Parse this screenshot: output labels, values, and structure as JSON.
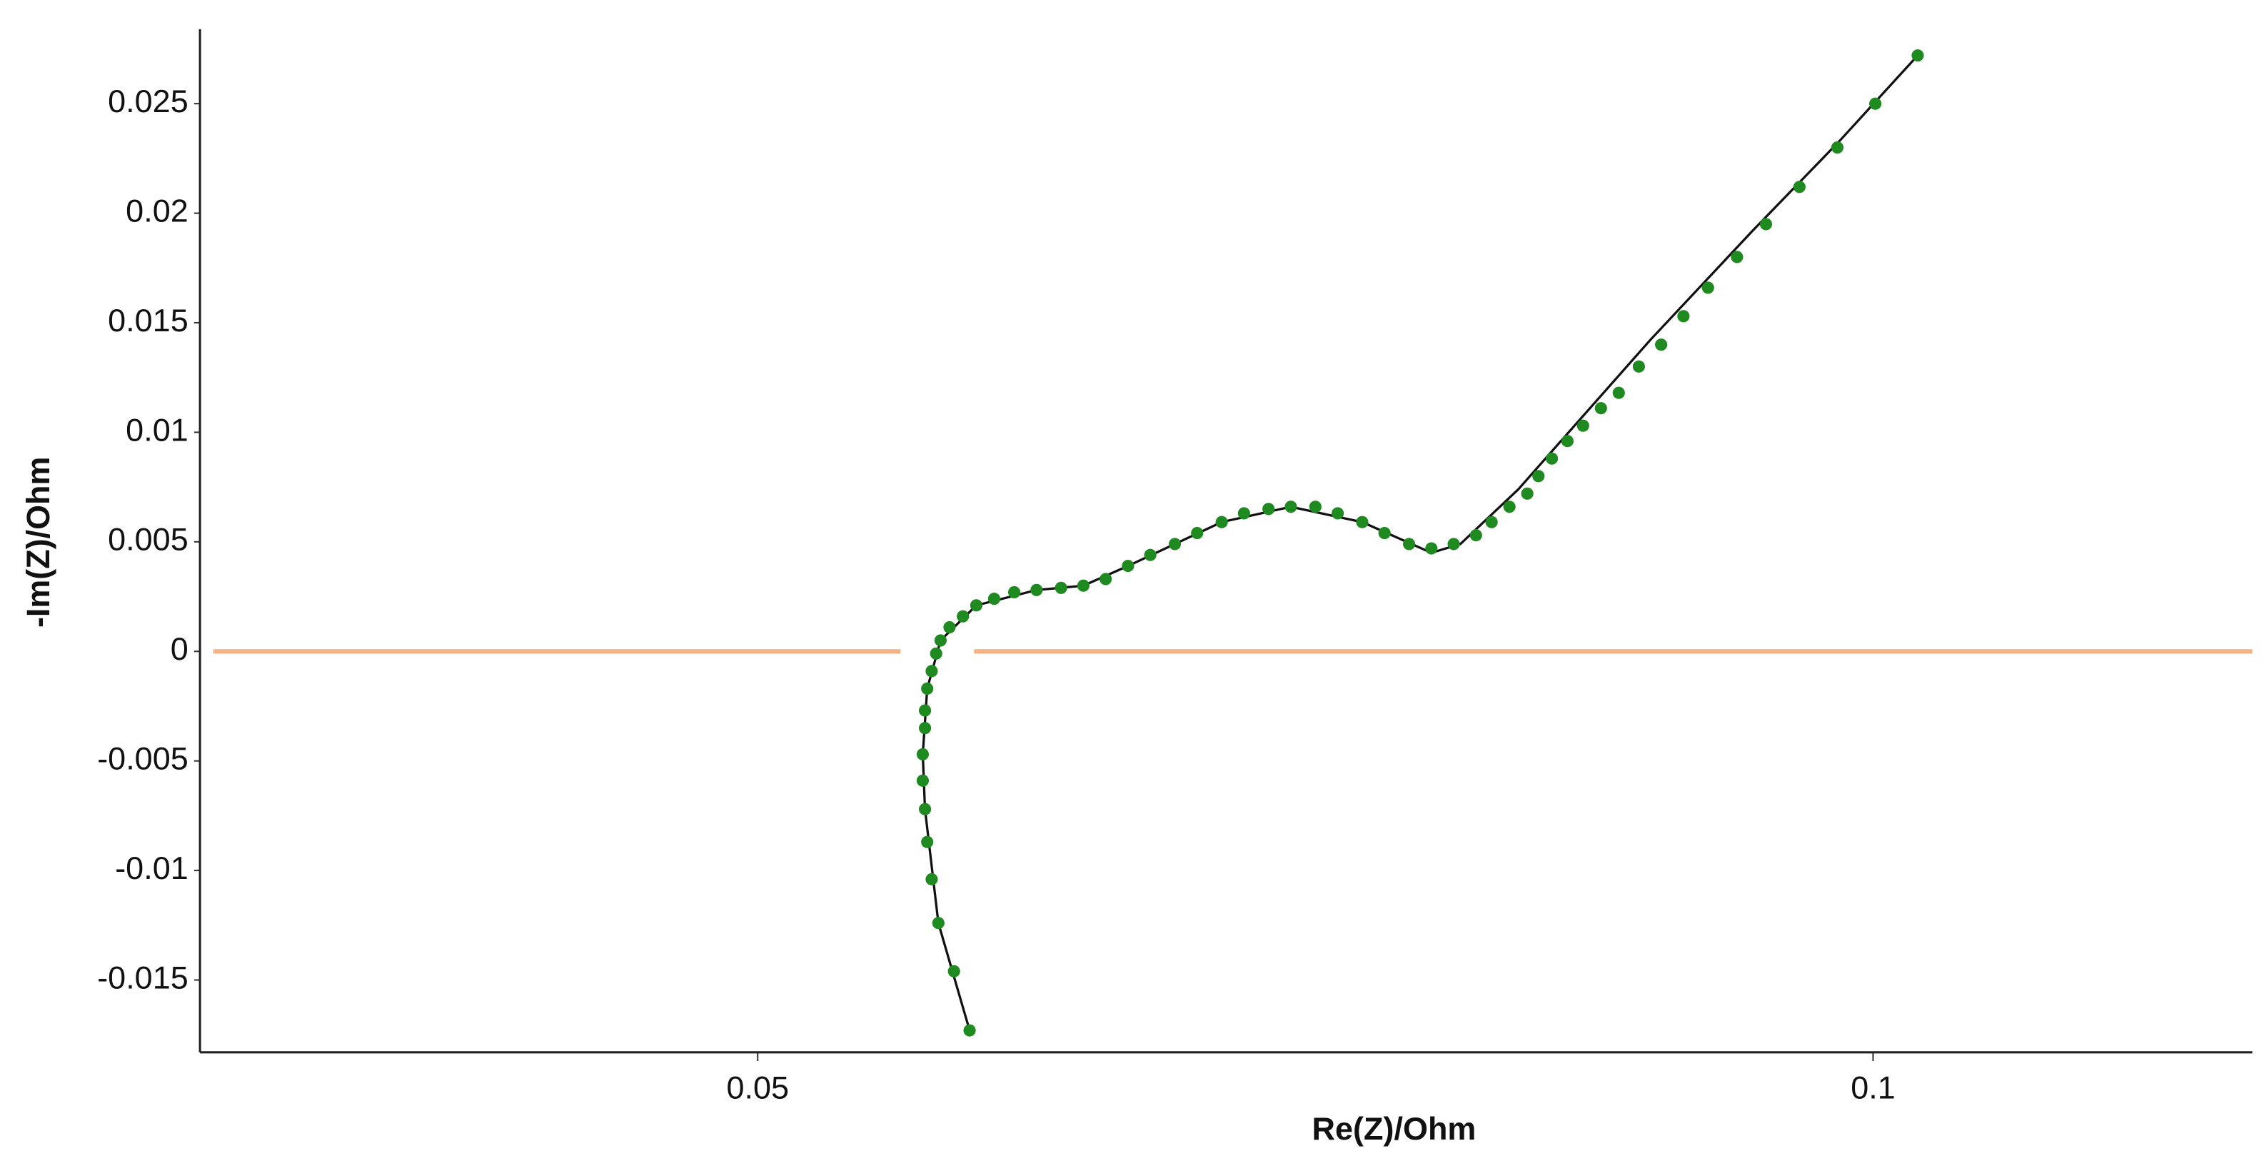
{
  "chart_data": {
    "type": "scatter",
    "x_label": "Re(Z)/Ohm",
    "y_label": "-Im(Z)/Ohm",
    "xlim": [
      0.025,
      0.117
    ],
    "ylim": [
      -0.0183,
      0.0284
    ],
    "xticks": [
      0.05,
      0.1
    ],
    "yticks": [
      -0.015,
      -0.01,
      -0.005,
      0,
      0.005,
      0.01,
      0.015,
      0.02,
      0.025
    ],
    "grid": false,
    "series": [
      {
        "color": "#1f8a1f",
        "style": "markers",
        "x": [
          0.0595,
          0.0588,
          0.0581,
          0.0578,
          0.0576,
          0.0575,
          0.0574,
          0.0574,
          0.0575,
          0.0575,
          0.0576,
          0.0578,
          0.058,
          0.0582,
          0.0586,
          0.0592,
          0.0598,
          0.0606,
          0.0615,
          0.0625,
          0.0636,
          0.0646,
          0.0656,
          0.0666,
          0.0676,
          0.0687,
          0.0697,
          0.0708,
          0.0718,
          0.0729,
          0.0739,
          0.075,
          0.076,
          0.0771,
          0.0781,
          0.0792,
          0.0802,
          0.0812,
          0.0822,
          0.0829,
          0.0837,
          0.0845,
          0.085,
          0.0856,
          0.0863,
          0.087,
          0.0878,
          0.0886,
          0.0895,
          0.0905,
          0.0915,
          0.0926,
          0.0939,
          0.0952,
          0.0967,
          0.0984,
          0.1001,
          0.102
        ],
        "values": [
          -0.0173,
          -0.0146,
          -0.0124,
          -0.0104,
          -0.0087,
          -0.0072,
          -0.0059,
          -0.0047,
          -0.0035,
          -0.0027,
          -0.0017,
          -0.0009,
          -0.0001,
          0.0005,
          0.0011,
          0.0016,
          0.0021,
          0.0024,
          0.0027,
          0.0028,
          0.0029,
          0.003,
          0.0033,
          0.0039,
          0.0044,
          0.0049,
          0.0054,
          0.0059,
          0.0063,
          0.0065,
          0.0066,
          0.0066,
          0.0063,
          0.0059,
          0.0054,
          0.0049,
          0.0047,
          0.0049,
          0.0053,
          0.0059,
          0.0066,
          0.0072,
          0.008,
          0.0088,
          0.0096,
          0.0103,
          0.0111,
          0.0118,
          0.013,
          0.014,
          0.0153,
          0.0166,
          0.018,
          0.0195,
          0.0212,
          0.023,
          0.025,
          0.0272
        ]
      },
      {
        "color": "#111111",
        "style": "line",
        "x": [
          0.0595,
          0.0581,
          0.0575,
          0.0574,
          0.0576,
          0.0582,
          0.0598,
          0.0625,
          0.0646,
          0.0666,
          0.0708,
          0.0739,
          0.0771,
          0.0802,
          0.0815,
          0.0841,
          0.0867,
          0.09,
          0.0946,
          0.0985,
          0.102
        ],
        "values": [
          -0.0173,
          -0.0124,
          -0.0072,
          -0.0047,
          -0.0017,
          0.0005,
          0.0021,
          0.0028,
          0.003,
          0.0039,
          0.0059,
          0.0066,
          0.0059,
          0.0045,
          0.0049,
          0.0074,
          0.0104,
          0.0142,
          0.0192,
          0.0233,
          0.0272
        ]
      },
      {
        "color": "#f4b183",
        "style": "line",
        "x": [
          0.0256,
          0.0564
        ],
        "values": [
          0,
          0
        ]
      },
      {
        "color": "#f4b183",
        "style": "line",
        "x": [
          0.0597,
          0.117
        ],
        "values": [
          0,
          0
        ]
      }
    ]
  }
}
